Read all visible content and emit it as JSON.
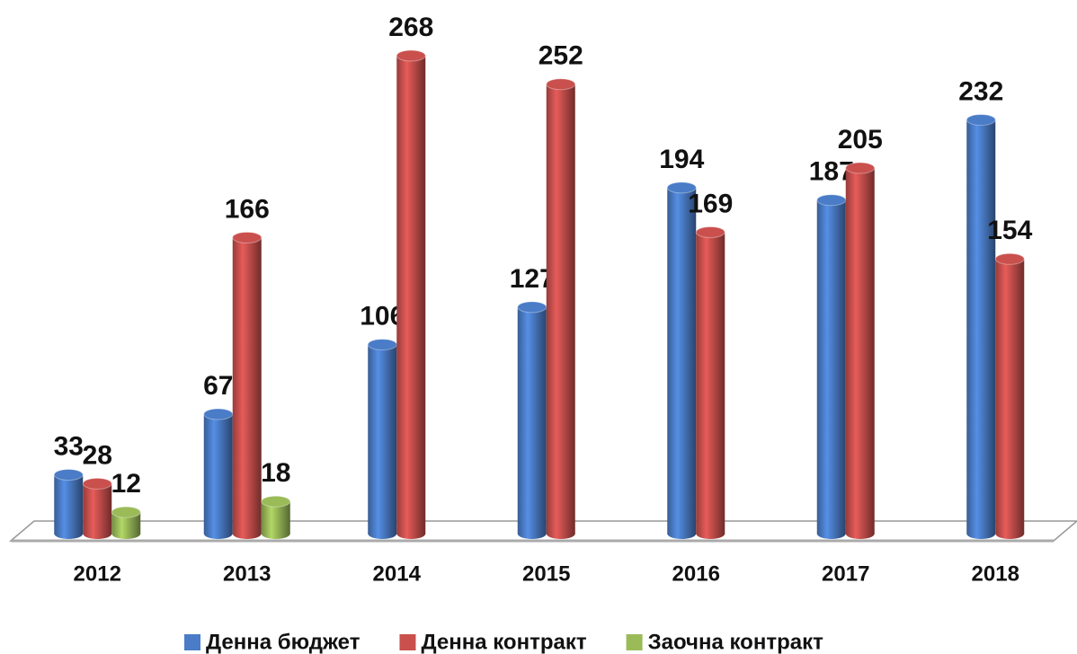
{
  "chart_data": {
    "type": "bar",
    "categories": [
      "2012",
      "2013",
      "2014",
      "2015",
      "2016",
      "2017",
      "2018"
    ],
    "series": [
      {
        "name": "Денна бюджет",
        "color": "#4a7cc7",
        "values": [
          33,
          67,
          106,
          127,
          194,
          187,
          232
        ]
      },
      {
        "name": "Денна контракт",
        "color": "#c9504d",
        "values": [
          28,
          166,
          268,
          252,
          169,
          205,
          154
        ]
      },
      {
        "name": "Заочна контракт",
        "color": "#9bbb59",
        "values": [
          12,
          18,
          null,
          null,
          null,
          null,
          null
        ]
      }
    ],
    "legend": "bottom"
  }
}
